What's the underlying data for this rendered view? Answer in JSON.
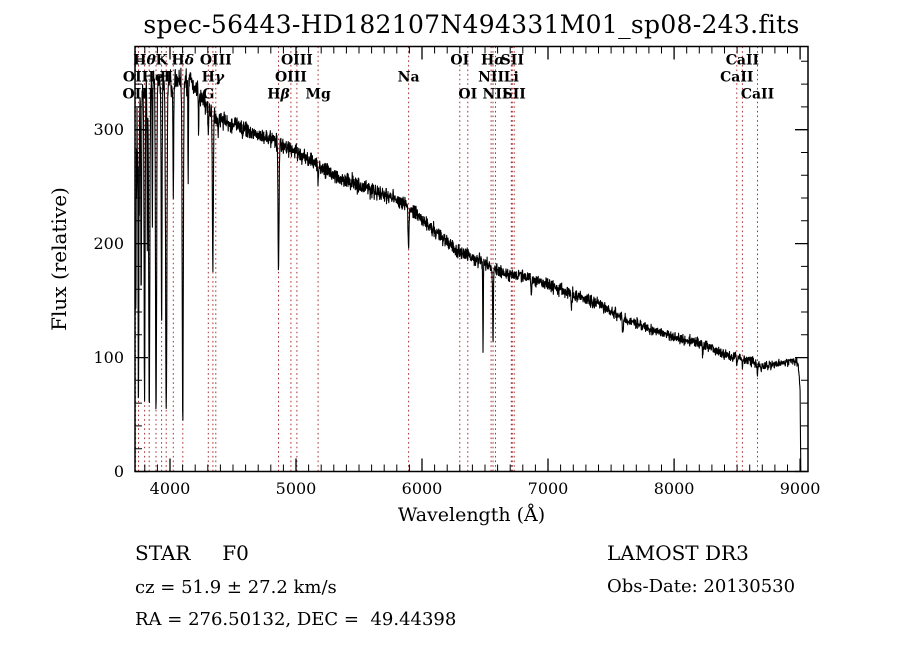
{
  "title": "spec-56443-HD182107N494331M01_sp08-243.fits",
  "axes": {
    "xlabel": "Wavelength (Å)",
    "ylabel": "Flux (relative)"
  },
  "annotations": {
    "classification": "STAR     F0",
    "survey": "LAMOST DR3",
    "cz": "cz = 51.9 ± 27.2 km/s",
    "obs_date": "Obs-Date: 20130530",
    "ra_dec": "RA = 276.50132, DEC =  49.44398"
  },
  "colors": {
    "background": "#ffffff",
    "spectrum": "#000000",
    "line_marker": "#a83232",
    "text": "#000000",
    "axis": "#000000"
  },
  "spectral_line_markers": [
    {
      "wavelength": 3727,
      "label": "OII",
      "row": 2
    },
    {
      "wavelength": 3750,
      "label": "OIII",
      "row": 3
    },
    {
      "wavelength": 3798,
      "label": "Hθ",
      "row": 1
    },
    {
      "wavelength": 3835,
      "label": "",
      "row": 0
    },
    {
      "wavelength": 3889,
      "label": "HeI",
      "row": 2
    },
    {
      "wavelength": 3933,
      "label": "K",
      "row": 1
    },
    {
      "wavelength": 3970,
      "label": "H",
      "row": 2
    },
    {
      "wavelength": 4026,
      "label": "",
      "row": 0
    },
    {
      "wavelength": 4101,
      "label": "Hδ",
      "row": 1
    },
    {
      "wavelength": 4304,
      "label": "G",
      "row": 3
    },
    {
      "wavelength": 4340,
      "label": "Hγ",
      "row": 2
    },
    {
      "wavelength": 4363,
      "label": "OIII",
      "row": 1
    },
    {
      "wavelength": 4861,
      "label": "Hβ",
      "row": 3
    },
    {
      "wavelength": 4959,
      "label": "OIII",
      "row": 2
    },
    {
      "wavelength": 5007,
      "label": "OIII",
      "row": 1
    },
    {
      "wavelength": 5175,
      "label": "Mg",
      "row": 3
    },
    {
      "wavelength": 5893,
      "label": "Na",
      "row": 2
    },
    {
      "wavelength": 6300,
      "label": "OI",
      "row": 1
    },
    {
      "wavelength": 6363,
      "label": "OI",
      "row": 3
    },
    {
      "wavelength": 6548,
      "label": "NII",
      "row": 2
    },
    {
      "wavelength": 6563,
      "label": "Hα",
      "row": 1
    },
    {
      "wavelength": 6583,
      "label": "NII",
      "row": 3
    },
    {
      "wavelength": 6708,
      "label": "Li",
      "row": 2
    },
    {
      "wavelength": 6716,
      "label": "SII",
      "row": 1
    },
    {
      "wavelength": 6731,
      "label": "SII",
      "row": 3
    },
    {
      "wavelength": 8498,
      "label": "CaII",
      "row": 2
    },
    {
      "wavelength": 8542,
      "label": "CaII",
      "row": 1
    },
    {
      "wavelength": 8662,
      "label": "CaII",
      "row": 3
    }
  ],
  "chart_data": {
    "type": "line",
    "title": "spec-56443-HD182107N494331M01_sp08-243.fits",
    "xlabel": "Wavelength (Å)",
    "ylabel": "Flux (relative)",
    "xlim": [
      3722,
      9063
    ],
    "ylim": [
      0,
      373
    ],
    "x_major_ticks": [
      4000,
      5000,
      6000,
      7000,
      8000,
      9000
    ],
    "y_major_ticks": [
      0,
      100,
      200,
      300
    ],
    "x_minor_step": 100,
    "y_minor_step": 20,
    "grid": false,
    "continuum_anchors": [
      [
        3722,
        240
      ],
      [
        3745,
        325
      ],
      [
        3780,
        335
      ],
      [
        3830,
        340
      ],
      [
        3880,
        344
      ],
      [
        3930,
        342
      ],
      [
        3980,
        340
      ],
      [
        4040,
        344
      ],
      [
        4100,
        341
      ],
      [
        4150,
        344
      ],
      [
        4200,
        336
      ],
      [
        4260,
        326
      ],
      [
        4320,
        317
      ],
      [
        4400,
        310
      ],
      [
        4500,
        305
      ],
      [
        4600,
        301
      ],
      [
        4700,
        297
      ],
      [
        4800,
        292
      ],
      [
        4900,
        287
      ],
      [
        5000,
        281
      ],
      [
        5100,
        274
      ],
      [
        5200,
        267
      ],
      [
        5300,
        261
      ],
      [
        5400,
        256
      ],
      [
        5500,
        251
      ],
      [
        5600,
        247
      ],
      [
        5700,
        243
      ],
      [
        5800,
        239
      ],
      [
        5900,
        233
      ],
      [
        5960,
        226
      ],
      [
        6040,
        217
      ],
      [
        6120,
        209
      ],
      [
        6200,
        201
      ],
      [
        6280,
        194
      ],
      [
        6360,
        190
      ],
      [
        6440,
        186
      ],
      [
        6520,
        182
      ],
      [
        6600,
        177
      ],
      [
        6700,
        173
      ],
      [
        6800,
        171
      ],
      [
        6900,
        168
      ],
      [
        7000,
        164
      ],
      [
        7100,
        160
      ],
      [
        7200,
        155
      ],
      [
        7300,
        151
      ],
      [
        7400,
        147
      ],
      [
        7500,
        141
      ],
      [
        7600,
        135
      ],
      [
        7700,
        130
      ],
      [
        7800,
        126
      ],
      [
        7900,
        122
      ],
      [
        8000,
        118
      ],
      [
        8100,
        115
      ],
      [
        8200,
        113
      ],
      [
        8300,
        108
      ],
      [
        8400,
        103
      ],
      [
        8500,
        100
      ],
      [
        8600,
        97
      ],
      [
        8700,
        92
      ],
      [
        8800,
        94
      ],
      [
        8900,
        96
      ],
      [
        8950,
        98
      ],
      [
        8985,
        95
      ],
      [
        9000,
        72
      ],
      [
        9004,
        18
      ],
      [
        9006,
        0
      ]
    ],
    "absorption_lines": [
      [
        3727,
        140,
        3.3
      ],
      [
        3750,
        85,
        3.3
      ],
      [
        3771,
        150,
        2.8
      ],
      [
        3798,
        65,
        3.9
      ],
      [
        3820,
        200,
        2.2
      ],
      [
        3835,
        52,
        4.4
      ],
      [
        3860,
        210,
        2.2
      ],
      [
        3889,
        48,
        4.4
      ],
      [
        3933,
        130,
        3.3
      ],
      [
        3970,
        55,
        5.0
      ],
      [
        4026,
        235,
        2.8
      ],
      [
        4101,
        48,
        4.4
      ],
      [
        4144,
        258,
        2.2
      ],
      [
        4227,
        295,
        2.2
      ],
      [
        4304,
        292,
        2.8
      ],
      [
        4340,
        178,
        3.9
      ],
      [
        4383,
        296,
        2.2
      ],
      [
        4481,
        290,
        2.2
      ],
      [
        4861,
        174,
        3.9
      ],
      [
        5175,
        250,
        3.3
      ],
      [
        5893,
        194,
        3.9
      ],
      [
        6300,
        184,
        1.7
      ],
      [
        6484,
        106,
        2.2
      ],
      [
        6563,
        116,
        3.3
      ],
      [
        6867,
        158,
        3.3
      ],
      [
        7186,
        142,
        2.8
      ],
      [
        7594,
        120,
        3.9
      ],
      [
        8227,
        103,
        2.8
      ],
      [
        8498,
        93,
        2.2
      ],
      [
        8542,
        91,
        2.2
      ],
      [
        8662,
        85,
        2.2
      ]
    ],
    "noise": {
      "seed": 1337,
      "blue_edge_amp": 55,
      "blue_edge_max_wavelength": 3758,
      "blue_amp": 11,
      "blue_max_wavelength": 4150,
      "amp_start": 8,
      "amp_end": 3.5
    },
    "spectrum_end_wavelength": 9006,
    "sample_step": 2
  }
}
